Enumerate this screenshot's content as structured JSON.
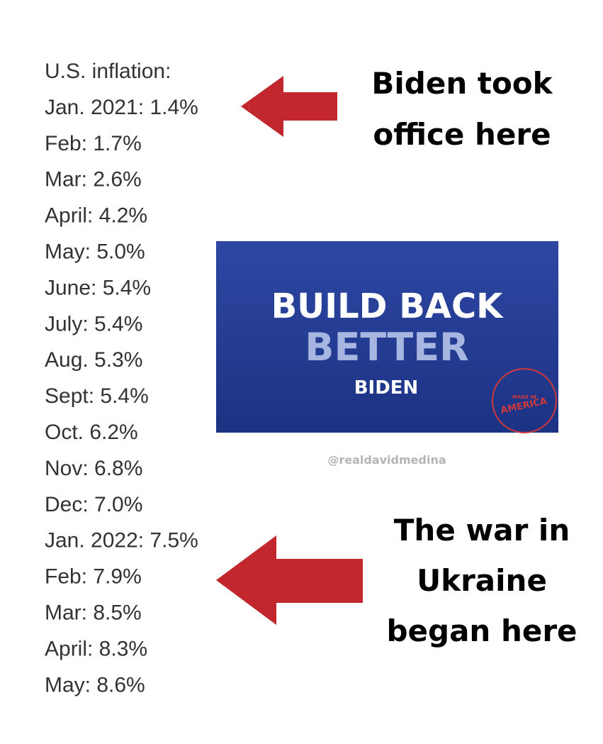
{
  "list": {
    "title": "U.S. inflation:",
    "items": [
      "Jan. 2021: 1.4%",
      "Feb: 1.7%",
      "Mar: 2.6%",
      "April: 4.2%",
      "May: 5.0%",
      "June: 5.4%",
      "July: 5.4%",
      "Aug. 5.3%",
      "Sept: 5.4%",
      "Oct. 6.2%",
      "Nov: 6.8%",
      "Dec: 7.0%",
      "Jan. 2022: 7.5%",
      "Feb: 7.9%",
      "Mar: 8.5%",
      "April: 8.3%",
      "May: 8.6%"
    ]
  },
  "annotations": [
    {
      "lines": [
        "Biden took",
        "office here"
      ]
    },
    {
      "lines": [
        "The war in",
        "Ukraine",
        "began here"
      ]
    }
  ],
  "banner": {
    "line1": "BUILD BACK",
    "line2": "BETTER",
    "name": "BIDEN",
    "badge_top": "MADE IN",
    "badge_bottom": "AMERICA"
  },
  "watermark": "@realdavidmedina"
}
